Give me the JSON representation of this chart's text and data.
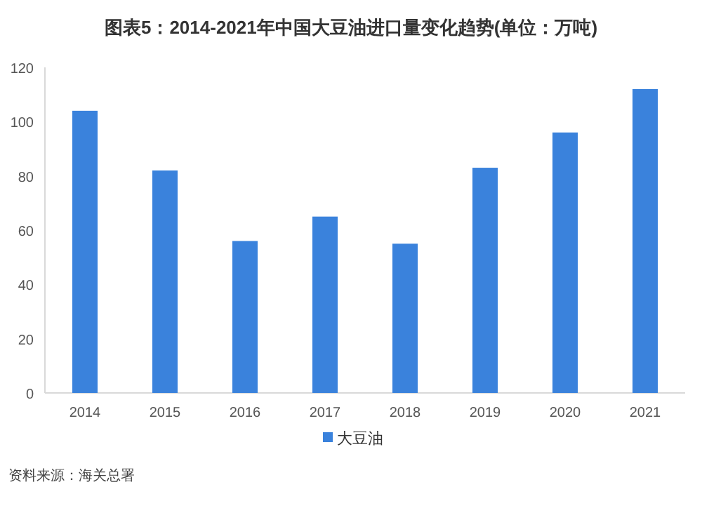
{
  "chart_data": {
    "type": "bar",
    "title": "图表5：2014-2021年中国大豆油进口量变化趋势(单位：万吨)",
    "categories": [
      "2014",
      "2015",
      "2016",
      "2017",
      "2018",
      "2019",
      "2020",
      "2021"
    ],
    "series": [
      {
        "name": "大豆油",
        "color": "#3a82dc",
        "values": [
          104,
          82,
          56,
          65,
          55,
          83,
          96,
          112
        ]
      }
    ],
    "ylim": [
      0,
      120
    ],
    "yticks": [
      0,
      20,
      40,
      60,
      80,
      100,
      120
    ],
    "grid": false,
    "legend": "bottom",
    "annotations": [
      "资料来源：海关总署"
    ]
  }
}
